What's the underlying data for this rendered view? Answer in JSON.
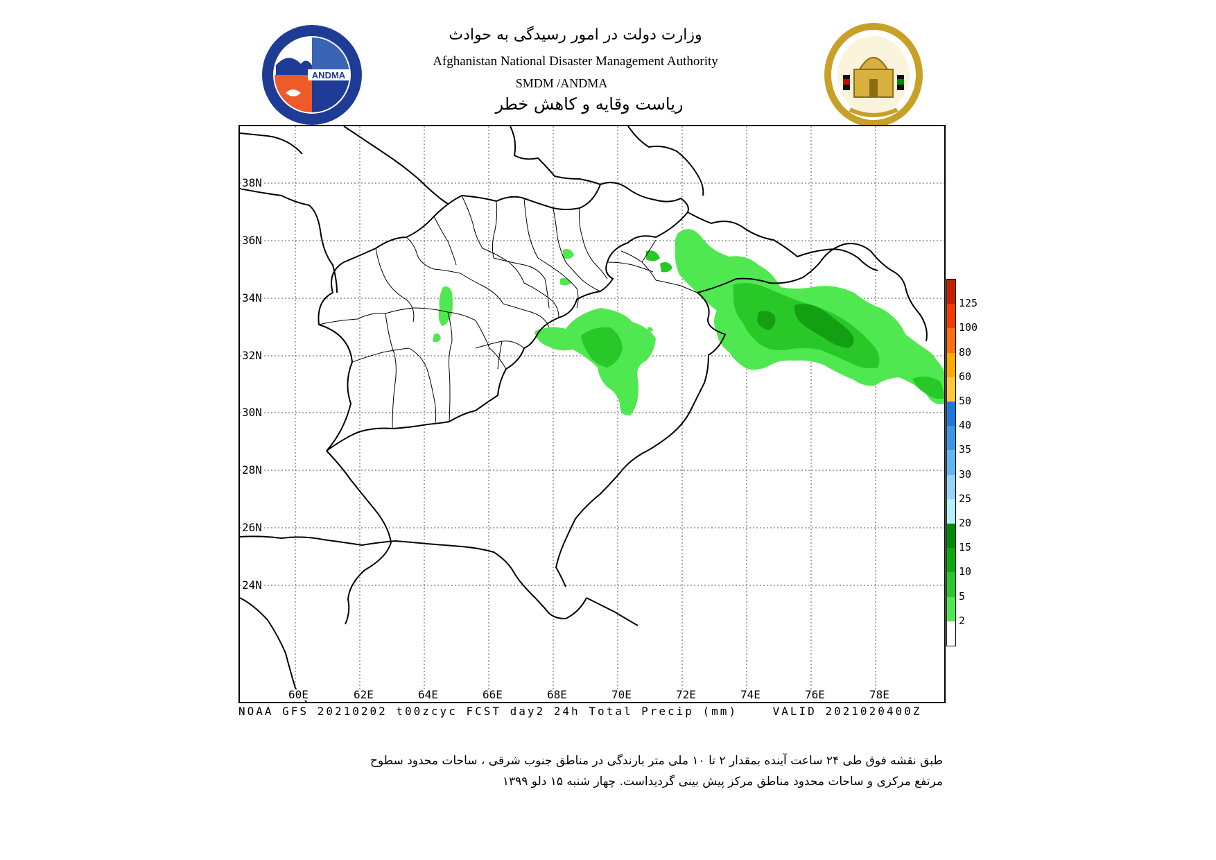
{
  "header": {
    "title_fa": "وزارت دولت در امور رسیدگی به حوادث",
    "title_en": "Afghanistan National Disaster Management Authority",
    "subtitle_en": "SMDM /ANDMA",
    "subtitle_fa": "ریاست وقایه و کاهش خطر"
  },
  "logos": {
    "left": {
      "name": "andma-logo",
      "text": "ANDMA"
    },
    "right": {
      "name": "afghanistan-emblem"
    }
  },
  "map": {
    "lat_labels": [
      "38N",
      "36N",
      "34N",
      "32N",
      "30N",
      "28N",
      "26N",
      "24N"
    ],
    "lon_labels": [
      "60E",
      "62E",
      "64E",
      "66E",
      "68E",
      "70E",
      "72E",
      "74E",
      "76E",
      "78E"
    ],
    "precip_color_light": "#50e850",
    "precip_color_mid": "#28c828",
    "precip_color_dark": "#12a012",
    "grid_color": "#555555",
    "border_color": "#000000"
  },
  "footer": {
    "caption": "NOAA GFS 20210202 t00zcyc FCST day2 24h Total Precip (mm)    VALID 2021020400Z"
  },
  "legend": {
    "labels": [
      "125",
      "100",
      "80",
      "60",
      "50",
      "40",
      "35",
      "30",
      "25",
      "20",
      "15",
      "10",
      "5",
      "2"
    ],
    "colors": [
      "#c81e00",
      "#f03c00",
      "#ff6e14",
      "#ffaa00",
      "#ffc83c",
      "#1e78dc",
      "#3c96e6",
      "#64b4f0",
      "#96d2fa",
      "#b4f0fa",
      "#008c00",
      "#0aaa0a",
      "#28c828",
      "#50e850",
      "#ffffff"
    ]
  },
  "description": {
    "line1": "طبق نقشه فوق طی ۲۴ ساعت آینده  بمقدار ۲  تا ۱۰ ملی متر بارندگی در  مناطق جنوب شرقی ،  ساحات محدود سطوح",
    "line2": "مرتفع مرکزی و  ساحات محدود مناطق مرکز پیش بینی گردیداست. چهار شنبه ۱۵ دلو ۱۳۹۹"
  }
}
